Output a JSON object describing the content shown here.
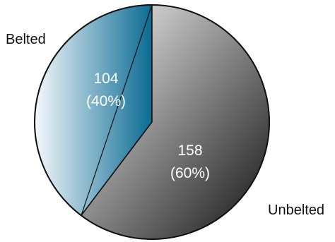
{
  "chart_data": {
    "type": "pie",
    "title": "",
    "slices": [
      {
        "name": "Belted",
        "value": 104,
        "percent_label": "(40%)",
        "value_label": "104",
        "color_start": "#f4f8fb",
        "color_end": "#0b6b93"
      },
      {
        "name": "Unbelted",
        "value": 158,
        "percent_label": "(60%)",
        "value_label": "158",
        "color_start": "#f8f8f8",
        "color_end": "#111111"
      }
    ],
    "start_angle_deg": 0,
    "direction": "counterclockwise",
    "legend": "outside-labels"
  },
  "colors": {
    "outline": "#111111",
    "label_text": "#ffffff",
    "category_text": "#111111"
  }
}
